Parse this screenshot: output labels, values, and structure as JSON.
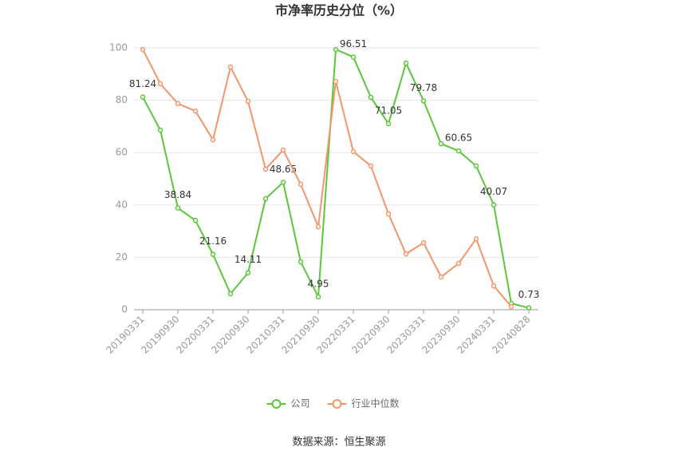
{
  "chart_data": {
    "type": "line",
    "title": "市净率历史分位（%）",
    "categories": [
      "20190331",
      null,
      "20190930",
      null,
      "20200331",
      null,
      "20200930",
      null,
      "20210331",
      null,
      "20210930",
      null,
      "20220331",
      null,
      "20220930",
      null,
      "20230331",
      null,
      "20230930",
      null,
      "20240331",
      null,
      "20240828"
    ],
    "series": [
      {
        "name": "公司",
        "color": "#5ac83a",
        "values": [
          81.24,
          68.6,
          38.84,
          34.1,
          21.16,
          6.1,
          14.11,
          42.4,
          48.65,
          18.3,
          4.95,
          99.4,
          96.51,
          81.1,
          71.05,
          94.2,
          79.78,
          63.4,
          60.65,
          54.9,
          40.07,
          2.4,
          0.73
        ],
        "value_labels": [
          "81.24",
          null,
          "38.84",
          null,
          "21.16",
          null,
          "14.11",
          null,
          "48.65",
          null,
          "4.95",
          null,
          "96.51",
          null,
          "71.05",
          null,
          "79.78",
          null,
          "60.65",
          null,
          "40.07",
          null,
          "0.73"
        ]
      },
      {
        "name": "行业中位数",
        "color": "#f4956b",
        "values": [
          99.4,
          86.3,
          78.7,
          75.9,
          64.9,
          92.7,
          79.6,
          53.7,
          61.0,
          47.9,
          31.7,
          87.2,
          60.4,
          54.9,
          36.6,
          21.3,
          25.6,
          12.5,
          17.7,
          27.1,
          9.1,
          1.2,
          null
        ]
      }
    ],
    "ylim": [
      0,
      100
    ],
    "yticks": [
      0,
      20,
      40,
      60,
      80,
      100
    ],
    "grid": true,
    "legend": "bottom",
    "source": "数据来源：恒生聚源"
  }
}
